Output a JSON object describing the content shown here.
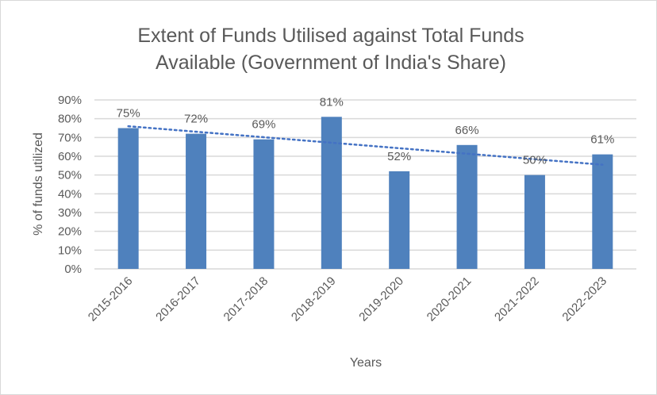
{
  "chart_data": {
    "type": "bar",
    "title_lines": [
      "Extent of Funds Utilised against Total Funds",
      "Available (Government of India's Share)"
    ],
    "xlabel": "Years",
    "ylabel": "% of funds utilized",
    "categories": [
      "2015-2016",
      "2016-2017",
      "2017-2018",
      "2018-2019",
      "2019-2020",
      "2020-2021",
      "2021-2022",
      "2022-2023"
    ],
    "values": [
      75,
      72,
      69,
      81,
      52,
      66,
      50,
      61
    ],
    "data_labels": [
      "75%",
      "72%",
      "69%",
      "81%",
      "52%",
      "66%",
      "50%",
      "61%"
    ],
    "ylim": [
      0,
      90
    ],
    "yticks": [
      "0%",
      "10%",
      "20%",
      "30%",
      "40%",
      "50%",
      "60%",
      "70%",
      "80%",
      "90%"
    ],
    "grid": true,
    "trendline": "linear, dotted",
    "colors": {
      "bar": "#4f81bd",
      "trend": "#4472c4",
      "grid": "#d9d9d9"
    }
  }
}
